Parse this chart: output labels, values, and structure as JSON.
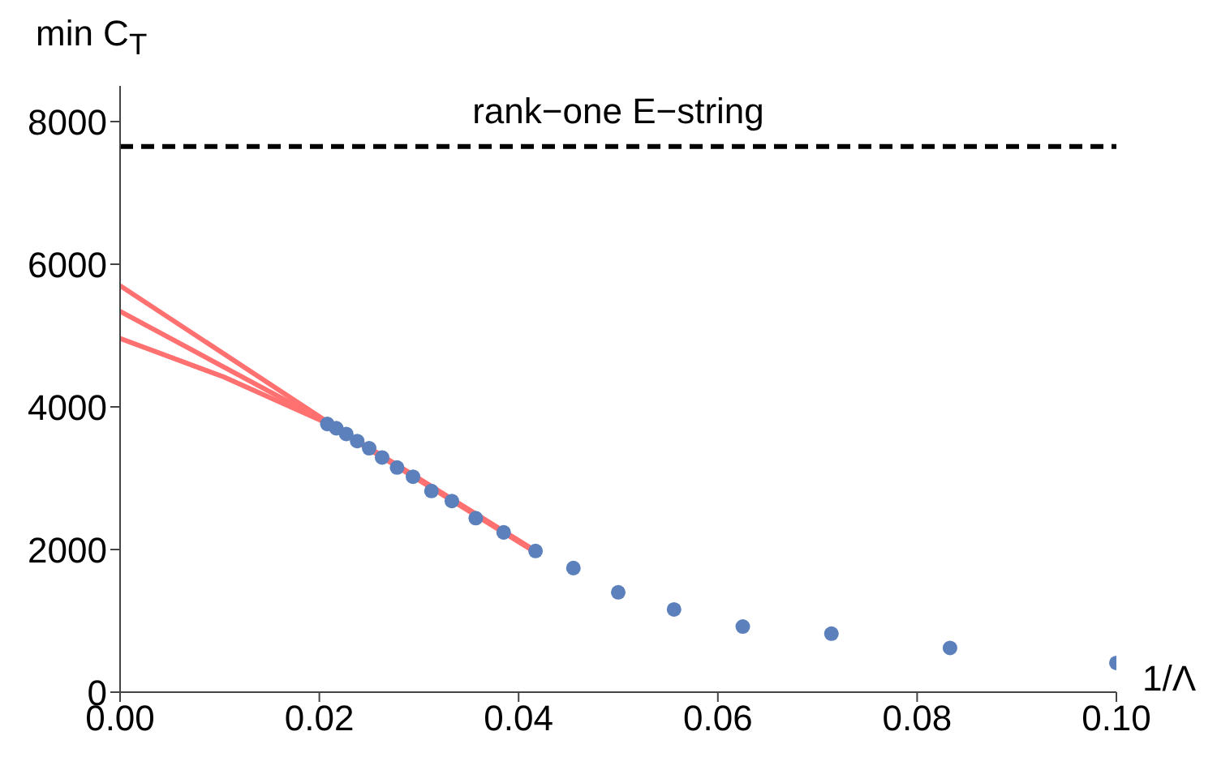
{
  "chart_data": {
    "type": "scatter",
    "xlabel": "1/Λ",
    "ylabel": "min C$_{T}$",
    "xlim": [
      0,
      0.1
    ],
    "ylim": [
      0,
      8500
    ],
    "xticks": [
      {
        "value": 0,
        "label": "0.00"
      },
      {
        "value": 0.02,
        "label": "0.02"
      },
      {
        "value": 0.04,
        "label": "0.04"
      },
      {
        "value": 0.06,
        "label": "0.06"
      },
      {
        "value": 0.08,
        "label": "0.08"
      },
      {
        "value": 0.1,
        "label": "0.10"
      }
    ],
    "yticks": [
      0,
      2000,
      4000,
      6000,
      8000
    ],
    "grid": false,
    "legend": false,
    "series": [
      {
        "marker": "circle",
        "color": "#5b80bb",
        "x": [
          0.0208,
          0.0217,
          0.0227,
          0.0238,
          0.025,
          0.0263,
          0.0278,
          0.0294,
          0.03125,
          0.0333,
          0.0357,
          0.0385,
          0.0417,
          0.0455,
          0.05,
          0.0556,
          0.0625,
          0.0714,
          0.0833,
          0.1
        ],
        "values": [
          3760,
          3700,
          3620,
          3520,
          3420,
          3290,
          3150,
          3020,
          2820,
          2680,
          2440,
          2240,
          1980,
          1740,
          1400,
          1160,
          920,
          820,
          620,
          410
        ]
      },
      {
        "type": "line",
        "marker": "none",
        "color": "#ff7070",
        "x": [
          0,
          0.0208,
          0.0417
        ],
        "values": [
          5700,
          3790,
          1980
        ]
      },
      {
        "type": "line",
        "marker": "none",
        "color": "#ff7070",
        "x": [
          0,
          0.0208,
          0.0417
        ],
        "values": [
          5340,
          3780,
          1970
        ]
      },
      {
        "type": "line",
        "marker": "none",
        "color": "#ff7070",
        "x": [
          0,
          0.0104,
          0.0208,
          0.0417
        ],
        "values": [
          4960,
          4420,
          3770,
          1960
        ]
      }
    ],
    "ref_lines": [
      {
        "axis": "y",
        "value": 7650,
        "label": "rank−one E−string",
        "color": "#000000",
        "line_style": "dashed"
      }
    ]
  }
}
